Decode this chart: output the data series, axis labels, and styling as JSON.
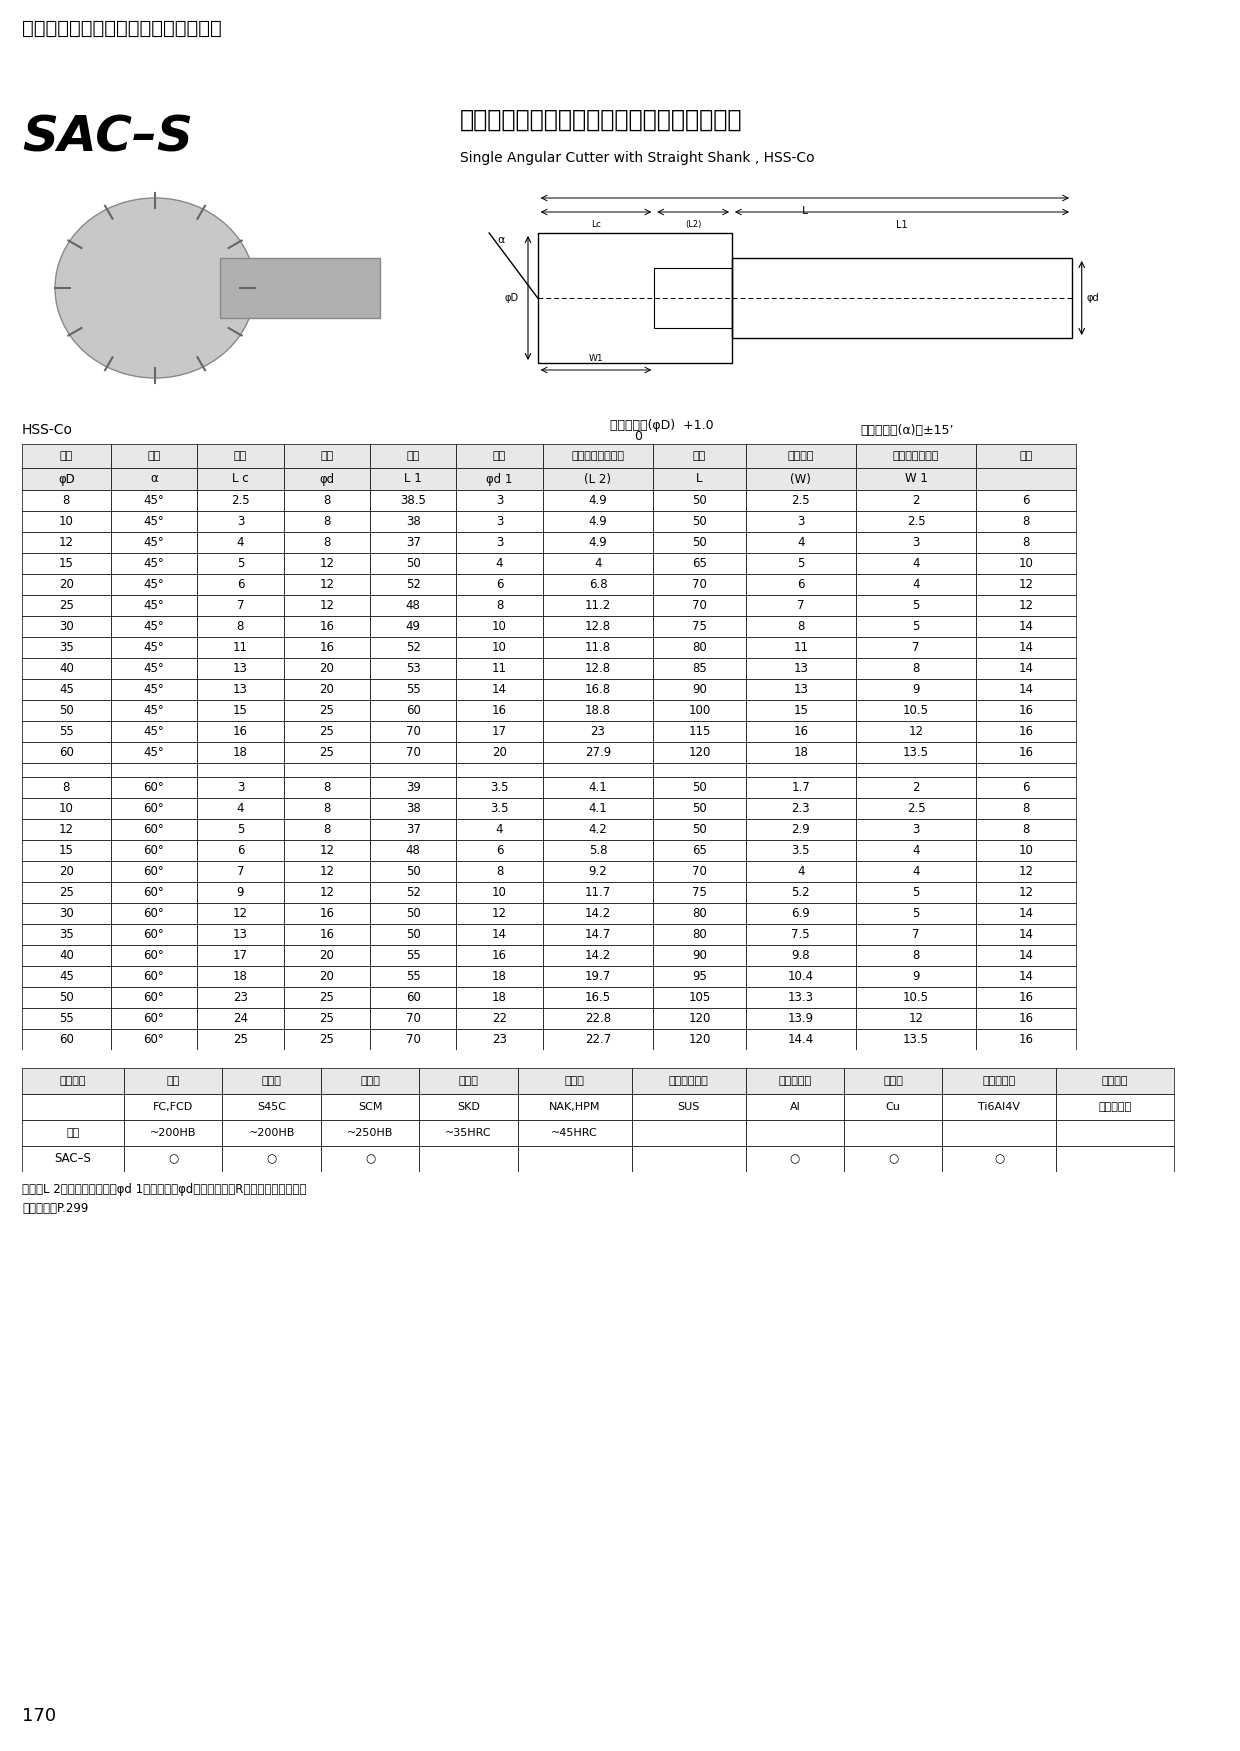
{
  "page_title": "カッター（シャンクタイプ）シリーズ",
  "red_bar_color": "#cc1111",
  "product_code": "SAC–S",
  "product_title_ja": "コバルト柄付シングルアンギュラーカッター",
  "product_title_en": "Single Angular Cutter with Straight Shank , HSS-Co",
  "hss_co_label": "HSS-Co",
  "table_headers_row1": [
    "外径",
    "角度",
    "刃幅",
    "柄径",
    "柄長",
    "首径",
    "首長（フラット）",
    "全長",
    "刃の高さ",
    "サイド刃の長さ",
    "刃数"
  ],
  "table_headers_row2": [
    "φD",
    "α",
    "L c",
    "φd",
    "L 1",
    "φd 1",
    "(L 2)",
    "L",
    "(W)",
    "W 1",
    ""
  ],
  "rows_45": [
    [
      "8",
      "45°",
      "2.5",
      "8",
      "38.5",
      "3",
      "4.9",
      "50",
      "2.5",
      "2",
      "6"
    ],
    [
      "10",
      "45°",
      "3",
      "8",
      "38",
      "3",
      "4.9",
      "50",
      "3",
      "2.5",
      "8"
    ],
    [
      "12",
      "45°",
      "4",
      "8",
      "37",
      "3",
      "4.9",
      "50",
      "4",
      "3",
      "8"
    ],
    [
      "15",
      "45°",
      "5",
      "12",
      "50",
      "4",
      "4",
      "65",
      "5",
      "4",
      "10"
    ],
    [
      "20",
      "45°",
      "6",
      "12",
      "52",
      "6",
      "6.8",
      "70",
      "6",
      "4",
      "12"
    ],
    [
      "25",
      "45°",
      "7",
      "12",
      "48",
      "8",
      "11.2",
      "70",
      "7",
      "5",
      "12"
    ],
    [
      "30",
      "45°",
      "8",
      "16",
      "49",
      "10",
      "12.8",
      "75",
      "8",
      "5",
      "14"
    ],
    [
      "35",
      "45°",
      "11",
      "16",
      "52",
      "10",
      "11.8",
      "80",
      "11",
      "7",
      "14"
    ],
    [
      "40",
      "45°",
      "13",
      "20",
      "53",
      "11",
      "12.8",
      "85",
      "13",
      "8",
      "14"
    ],
    [
      "45",
      "45°",
      "13",
      "20",
      "55",
      "14",
      "16.8",
      "90",
      "13",
      "9",
      "14"
    ],
    [
      "50",
      "45°",
      "15",
      "25",
      "60",
      "16",
      "18.8",
      "100",
      "15",
      "10.5",
      "16"
    ],
    [
      "55",
      "45°",
      "16",
      "25",
      "70",
      "17",
      "23",
      "115",
      "16",
      "12",
      "16"
    ],
    [
      "60",
      "45°",
      "18",
      "25",
      "70",
      "20",
      "27.9",
      "120",
      "18",
      "13.5",
      "16"
    ]
  ],
  "rows_60": [
    [
      "8",
      "60°",
      "3",
      "8",
      "39",
      "3.5",
      "4.1",
      "50",
      "1.7",
      "2",
      "6"
    ],
    [
      "10",
      "60°",
      "4",
      "8",
      "38",
      "3.5",
      "4.1",
      "50",
      "2.3",
      "2.5",
      "8"
    ],
    [
      "12",
      "60°",
      "5",
      "8",
      "37",
      "4",
      "4.2",
      "50",
      "2.9",
      "3",
      "8"
    ],
    [
      "15",
      "60°",
      "6",
      "12",
      "48",
      "6",
      "5.8",
      "65",
      "3.5",
      "4",
      "10"
    ],
    [
      "20",
      "60°",
      "7",
      "12",
      "50",
      "8",
      "9.2",
      "70",
      "4",
      "4",
      "12"
    ],
    [
      "25",
      "60°",
      "9",
      "12",
      "52",
      "10",
      "11.7",
      "75",
      "5.2",
      "5",
      "12"
    ],
    [
      "30",
      "60°",
      "12",
      "16",
      "50",
      "12",
      "14.2",
      "80",
      "6.9",
      "5",
      "14"
    ],
    [
      "35",
      "60°",
      "13",
      "16",
      "50",
      "14",
      "14.7",
      "80",
      "7.5",
      "7",
      "14"
    ],
    [
      "40",
      "60°",
      "17",
      "20",
      "55",
      "16",
      "14.2",
      "90",
      "9.8",
      "8",
      "14"
    ],
    [
      "45",
      "60°",
      "18",
      "20",
      "55",
      "18",
      "19.7",
      "95",
      "10.4",
      "9",
      "14"
    ],
    [
      "50",
      "60°",
      "23",
      "25",
      "60",
      "18",
      "16.5",
      "105",
      "13.3",
      "10.5",
      "16"
    ],
    [
      "55",
      "60°",
      "24",
      "25",
      "70",
      "22",
      "22.8",
      "120",
      "13.9",
      "12",
      "16"
    ],
    [
      "60",
      "60°",
      "25",
      "25",
      "70",
      "23",
      "22.7",
      "120",
      "14.4",
      "13.5",
      "16"
    ]
  ],
  "mat_headers_row1": [
    "被削材種",
    "鑄物",
    "炭素鉰",
    "合金鉰",
    "工具鉰",
    "調質鉰",
    "ステンレス鉰",
    "アルミ合金",
    "銅合金",
    "チタン合金",
    "聃炱合金"
  ],
  "mat_row2": [
    "",
    "FC,FCD",
    "S45C",
    "SCM",
    "SKD",
    "NAK,HPM",
    "SUS",
    "Al",
    "Cu",
    "Ti6Al4V",
    "インコネル"
  ],
  "mat_hardness_label": "硬度",
  "mat_hardness": [
    "~200HB",
    "~200HB",
    "~250HB",
    "~35HRC",
    "~45HRC",
    "",
    "",
    "",
    "",
    ""
  ],
  "mat_type_label": "型番",
  "mat_sac_label": "SAC–S",
  "mat_marks": [
    "○",
    "○",
    "○",
    "",
    "",
    "",
    "○",
    "○",
    "○",
    ""
  ],
  "footnote1": "首長（L 2）対法は、首径（φd 1）と柄径（φd）のつなぎがRのため参考値です。",
  "footnote2": "切削条件　P.299",
  "page_number": "170",
  "tolerance_outer": "外径許容差(φD)",
  "tolerance_angle": "角度許容差(α)　±15’"
}
